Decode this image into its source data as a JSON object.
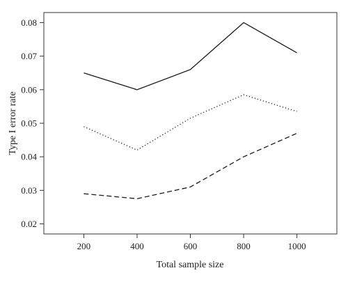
{
  "chart_data": {
    "type": "line",
    "title": "",
    "xlabel": "Total sample size",
    "ylabel": "Type I error rate",
    "x": [
      200,
      400,
      600,
      800,
      1000
    ],
    "x_ticks": [
      "200",
      "400",
      "600",
      "800",
      "1000"
    ],
    "y_ticks": [
      "0.02",
      "0.03",
      "0.04",
      "0.05",
      "0.06",
      "0.07",
      "0.08"
    ],
    "xlim": [
      50,
      1150
    ],
    "ylim": [
      0.017,
      0.083
    ],
    "grid": false,
    "legend": "none",
    "series": [
      {
        "style": "solid",
        "color": "#1a1a1a",
        "values": [
          0.065,
          0.06,
          0.066,
          0.08,
          0.071
        ]
      },
      {
        "style": "dotted",
        "color": "#1a1a1a",
        "values": [
          0.049,
          0.042,
          0.0515,
          0.0585,
          0.0535
        ]
      },
      {
        "style": "dashed",
        "color": "#1a1a1a",
        "values": [
          0.029,
          0.0275,
          0.031,
          0.04,
          0.047
        ]
      }
    ]
  }
}
